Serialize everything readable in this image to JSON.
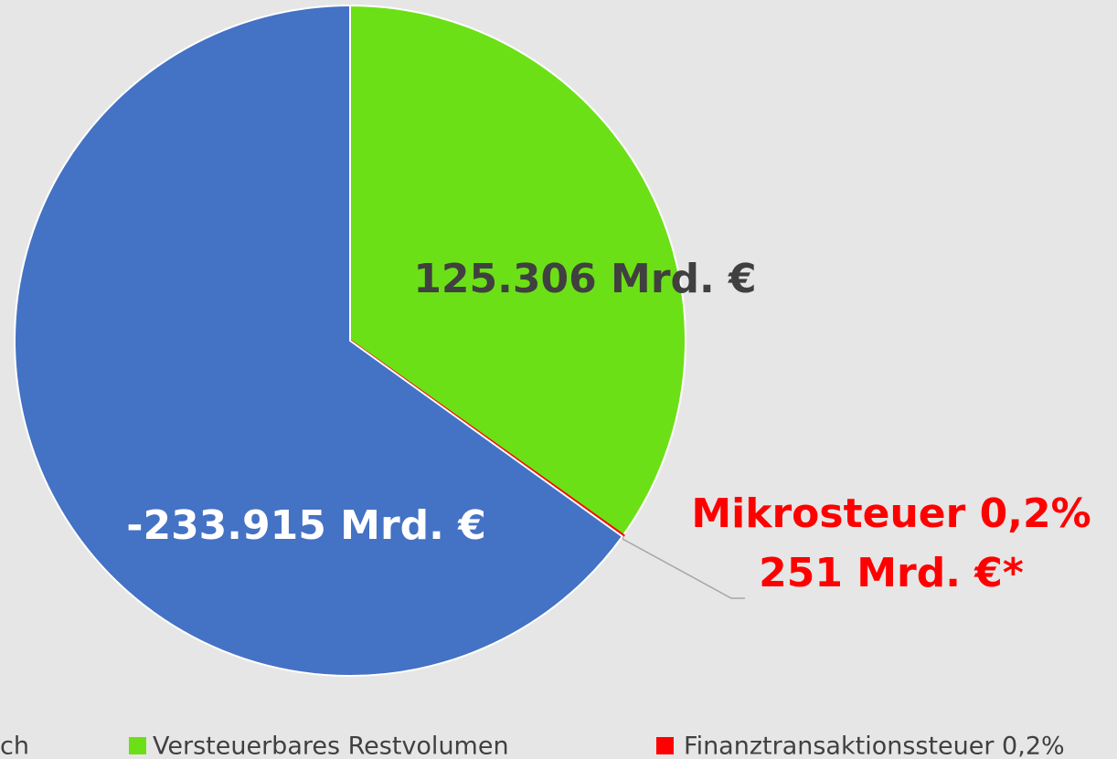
{
  "chart_data": {
    "type": "pie",
    "categories": [
      "ch",
      "Versteuerbares Restvolumen",
      "Finanztransaktionssteuer 0,2%"
    ],
    "values": [
      -233915,
      125306,
      251
    ],
    "value_labels": [
      "-233.915 Mrd. €",
      "125.306 Mrd. €",
      "251 Mrd. €*"
    ],
    "colors": [
      "#4472c4",
      "#6ce016",
      "#ff0000"
    ],
    "annotation": "Mikrosteuer 0,2%",
    "legend": "bottom"
  }
}
